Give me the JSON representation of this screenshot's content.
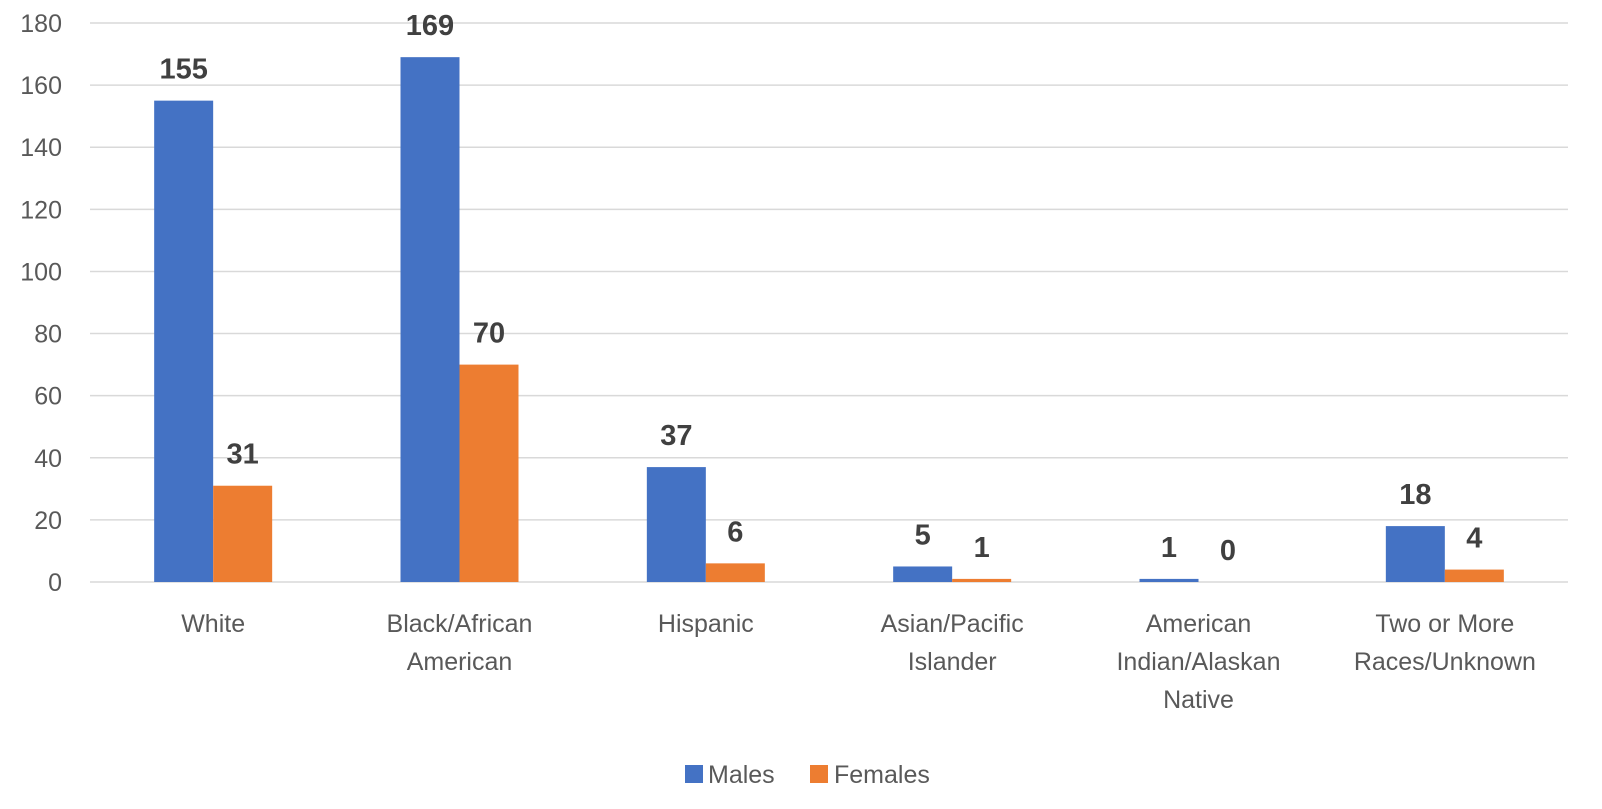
{
  "chart_data": {
    "type": "bar",
    "title": "",
    "xlabel": "",
    "ylabel": "",
    "ylim": [
      0,
      180
    ],
    "yticks": [
      0,
      20,
      40,
      60,
      80,
      100,
      120,
      140,
      160,
      180
    ],
    "grid": true,
    "legend_position": "bottom",
    "categories": [
      [
        "White"
      ],
      [
        "Black/African",
        "American"
      ],
      [
        "Hispanic"
      ],
      [
        "Asian/Pacific",
        "Islander"
      ],
      [
        "American",
        "Indian/Alaskan",
        "Native"
      ],
      [
        "Two or More",
        "Races/Unknown"
      ]
    ],
    "series": [
      {
        "name": "Males",
        "color": "#4472C4",
        "values": [
          155,
          169,
          37,
          5,
          1,
          18
        ]
      },
      {
        "name": "Females",
        "color": "#ED7D31",
        "values": [
          31,
          70,
          6,
          1,
          0,
          4
        ]
      }
    ]
  }
}
